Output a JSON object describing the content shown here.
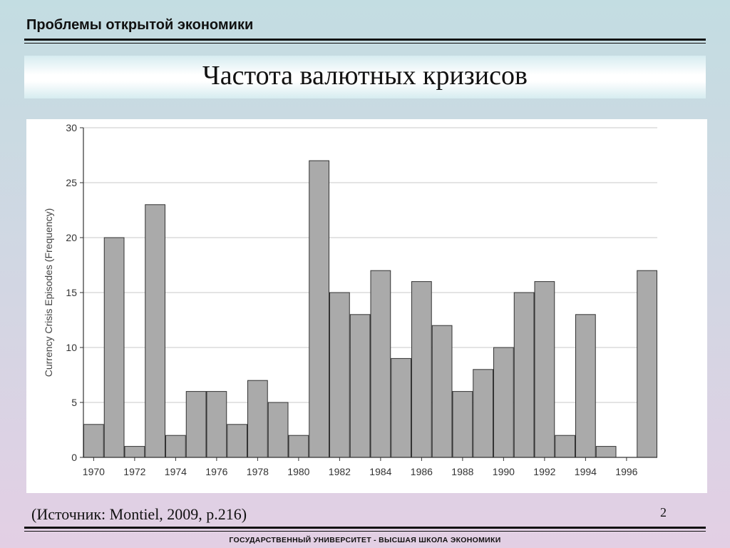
{
  "header": {
    "course_title": "Проблемы открытой экономики"
  },
  "slide": {
    "title": "Частота валютных кризисов"
  },
  "chart_data": {
    "type": "bar",
    "x": [
      1970,
      1971,
      1972,
      1973,
      1974,
      1975,
      1976,
      1977,
      1978,
      1979,
      1980,
      1981,
      1982,
      1983,
      1984,
      1985,
      1986,
      1987,
      1988,
      1989,
      1990,
      1991,
      1992,
      1993,
      1994,
      1995,
      1996,
      1997
    ],
    "values": [
      3,
      20,
      1,
      23,
      2,
      6,
      6,
      3,
      7,
      5,
      2,
      27,
      15,
      13,
      17,
      9,
      16,
      12,
      6,
      8,
      10,
      15,
      16,
      2,
      13,
      1,
      0,
      17
    ],
    "xticks": [
      "1970",
      "1972",
      "1974",
      "1976",
      "1978",
      "1980",
      "1982",
      "1984",
      "1986",
      "1988",
      "1990",
      "1992",
      "1994",
      "1996"
    ],
    "yticks": [
      "0",
      "5",
      "10",
      "15",
      "20",
      "25",
      "30"
    ],
    "ylabel": "Currency Crisis Episodes (Frequency)",
    "xlabel": "",
    "ylim": [
      0,
      30
    ],
    "grid": true,
    "bar_color": "#aaaaaa",
    "bar_edge_color": "#333333"
  },
  "footer": {
    "source": "(Источник: Montiel, 2009, p.216)",
    "page_number": "2",
    "institution": "ГОСУДАРСТВЕННЫЙ УНИВЕРСИТЕТ - ВЫСШАЯ ШКОЛА ЭКОНОМИКИ"
  }
}
